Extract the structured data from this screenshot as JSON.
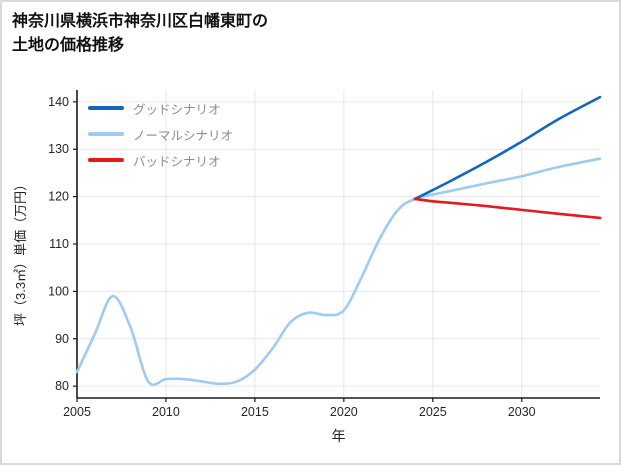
{
  "title_line1": "神奈川県横浜市神奈川区白幡東町の",
  "title_line2": "土地の価格推移",
  "chart_data": {
    "type": "line",
    "title": "神奈川県横浜市神奈川区白幡東町の土地の価格推移",
    "xlabel": "年",
    "ylabel": "坪（3.3㎡）単価（万円）",
    "xlim": [
      2005,
      2034.4
    ],
    "ylim": [
      77.5,
      142.5
    ],
    "xticks": [
      2005,
      2010,
      2015,
      2020,
      2025,
      2030
    ],
    "yticks": [
      80,
      90,
      100,
      110,
      120,
      130,
      140
    ],
    "grid": true,
    "legend_position": "top-left",
    "series": [
      {
        "name": "グッドシナリオ",
        "color": "#1565c0",
        "x": [
          2024,
          2026,
          2028,
          2030,
          2032,
          2034.4
        ],
        "y": [
          119.5,
          123.3,
          127.3,
          131.6,
          136.2,
          141
        ]
      },
      {
        "name": "ノーマルシナリオ",
        "color": "#9ecbf0",
        "x": [
          2005,
          2006,
          2007,
          2008,
          2009,
          2010,
          2011,
          2012,
          2013,
          2014,
          2015,
          2016,
          2017,
          2018,
          2019,
          2020,
          2021,
          2022,
          2023,
          2024,
          2026,
          2028,
          2030,
          2032,
          2034.4
        ],
        "y": [
          83,
          91,
          99,
          92.5,
          81,
          81.5,
          81.5,
          81,
          80.5,
          81,
          83.5,
          88,
          93.5,
          95.5,
          95,
          96,
          103,
          111,
          117,
          119.5,
          121.2,
          122.8,
          124.3,
          126.2,
          128
        ]
      },
      {
        "name": "バッドシナリオ",
        "color": "#e41a1c",
        "x": [
          2024,
          2025,
          2026,
          2028,
          2030,
          2032,
          2034.4
        ],
        "y": [
          119.5,
          119,
          118.7,
          118,
          117.2,
          116.4,
          115.5
        ]
      }
    ]
  }
}
